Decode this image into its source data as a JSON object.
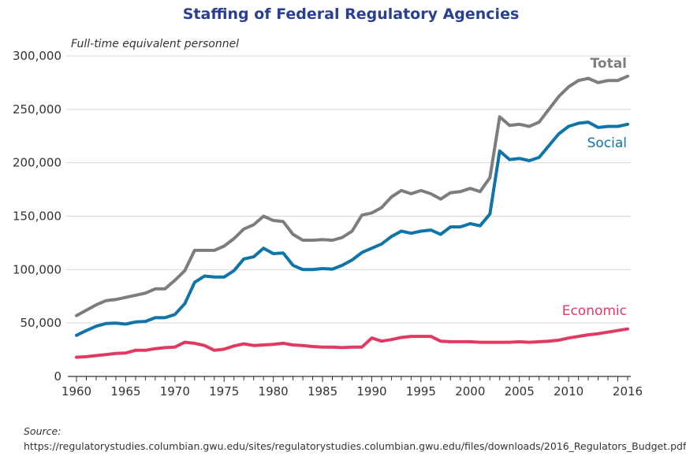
{
  "chart_data": {
    "type": "line",
    "title": "Staffing of Federal Regulatory Agencies",
    "subtitle": "Full-time equivalent personnel",
    "xlim": [
      1960,
      2016
    ],
    "ylim": [
      0,
      300000
    ],
    "x_ticks": [
      1960,
      1965,
      1970,
      1975,
      1980,
      1985,
      1990,
      1995,
      2000,
      2005,
      2010,
      2016
    ],
    "y_ticks": [
      "0",
      "50,000",
      "100,000",
      "150,000",
      "200,000",
      "250,000",
      "300,000"
    ],
    "y_tick_values": [
      0,
      50000,
      100000,
      150000,
      200000,
      250000,
      300000
    ],
    "grid": "horizontal",
    "x": [
      1960,
      1961,
      1962,
      1963,
      1964,
      1965,
      1966,
      1967,
      1968,
      1969,
      1970,
      1971,
      1972,
      1973,
      1974,
      1975,
      1976,
      1977,
      1978,
      1979,
      1980,
      1981,
      1982,
      1983,
      1984,
      1985,
      1986,
      1987,
      1988,
      1989,
      1990,
      1991,
      1992,
      1993,
      1994,
      1995,
      1996,
      1997,
      1998,
      1999,
      2000,
      2001,
      2002,
      2003,
      2004,
      2005,
      2006,
      2007,
      2008,
      2009,
      2010,
      2011,
      2012,
      2013,
      2014,
      2015,
      2016
    ],
    "series": [
      {
        "name": "Total",
        "color": "#7b7d80",
        "values": [
          57000,
          62000,
          67000,
          71000,
          72000,
          74000,
          76000,
          78000,
          82000,
          82000,
          90000,
          99000,
          118000,
          118000,
          118000,
          122000,
          129000,
          138000,
          142000,
          150000,
          146000,
          145000,
          133000,
          127500,
          127500,
          128000,
          127500,
          130000,
          136000,
          151000,
          153000,
          158000,
          168000,
          174000,
          171000,
          174000,
          171000,
          166000,
          172000,
          173000,
          176000,
          173000,
          186000,
          243000,
          235000,
          236000,
          234000,
          238000,
          250000,
          262000,
          271000,
          277000,
          279000,
          275000,
          277000,
          277000,
          281000
        ]
      },
      {
        "name": "Social",
        "color": "#0f74a8",
        "values": [
          38500,
          43000,
          47000,
          49500,
          50000,
          49000,
          51000,
          51500,
          55000,
          55000,
          58000,
          68000,
          88000,
          94000,
          93000,
          93000,
          99000,
          110000,
          112000,
          120000,
          115000,
          115500,
          104000,
          100000,
          100000,
          101000,
          100500,
          104000,
          109000,
          116000,
          120000,
          124000,
          131000,
          136000,
          134000,
          136000,
          137000,
          133000,
          140000,
          140000,
          143000,
          141000,
          152000,
          211000,
          203000,
          204000,
          202000,
          205000,
          216000,
          227000,
          234000,
          237000,
          238000,
          233000,
          234000,
          234000,
          236000
        ]
      },
      {
        "name": "Economic",
        "color": "#e03a62",
        "values": [
          18000,
          18500,
          19500,
          20500,
          21500,
          22000,
          24500,
          24500,
          26000,
          27000,
          27500,
          32000,
          31000,
          29000,
          24500,
          25500,
          28500,
          30500,
          29000,
          29500,
          30000,
          31000,
          29500,
          29000,
          28000,
          27500,
          27500,
          27000,
          27500,
          27500,
          36000,
          33000,
          34500,
          36500,
          37500,
          37500,
          37500,
          33000,
          32500,
          32500,
          32500,
          32000,
          32000,
          32000,
          32000,
          32500,
          32000,
          32500,
          33000,
          34000,
          36000,
          37500,
          39000,
          40000,
          41500,
          43000,
          44500
        ]
      }
    ]
  },
  "source": {
    "label": "Source:",
    "text": "https://regulatorystudies.columbian.gwu.edu/sites/regulatorystudies.columbian.gwu.edu/files/downloads/2016_Regulators_Budget.pdf"
  }
}
